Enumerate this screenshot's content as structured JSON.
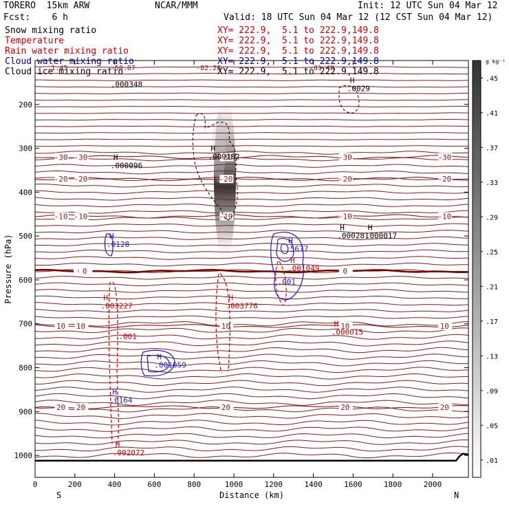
{
  "header": {
    "model": "TORERO  15km ARW",
    "org": "NCAR/MMM",
    "init": "Init: 12 UTC Sun 04 Mar 12",
    "fcst": "Fcst:    6 h",
    "valid": "Valid: 18 UTC Sun 04 Mar 12 (12 CST Sun 04 Mar 12)"
  },
  "legend": [
    {
      "name": "Snow mixing ratio",
      "color": "#000000",
      "xy": "XY= 222.9,  5.1 to 222.9,149.8"
    },
    {
      "name": "Temperature",
      "color": "#cc0000",
      "xy": "XY= 222.9,  5.1 to 222.9,149.8"
    },
    {
      "name": "Rain water mixing ratio",
      "color": "#cc0000",
      "xy": "XY= 222.9,  5.1 to 222.9,149.8"
    },
    {
      "name": "Cloud water mixing ratio",
      "color": "#0000aa",
      "xy": "XY= 222.9,  5.1 to 222.9,149.8"
    },
    {
      "name": "Cloud ice mixing ratio",
      "color": "#000000",
      "xy": "XY= 222.9,  5.1 to 222.9,149.8"
    }
  ],
  "colors": {
    "temperature": "#8b1a1a",
    "freezing_line": "#7a0000",
    "rain": "#cc0000",
    "cloud_water": "#1a1acc",
    "snow": "#000000",
    "ground": "#000000"
  },
  "chart_data": {
    "type": "heatmap",
    "title": "",
    "xlabel": "Distance (km)",
    "ylabel": "Pressure (hPa)",
    "xlim": [
      0,
      2180
    ],
    "ylim": [
      1050,
      100
    ],
    "x_ticks": [
      0,
      200,
      400,
      600,
      800,
      1000,
      1200,
      1400,
      1600,
      1800,
      2000
    ],
    "y_ticks": [
      200,
      300,
      400,
      500,
      600,
      700,
      800,
      900,
      1000
    ],
    "x_end_labels": {
      "left": "S",
      "right": "N"
    },
    "colorbar": {
      "unit": "g kg⁻¹",
      "ticks": [
        ".01",
        ".05",
        ".09",
        ".13",
        ".17",
        ".21",
        ".25",
        ".29",
        ".33",
        ".37",
        ".41",
        ".45"
      ]
    },
    "temperature_isotherms": [
      {
        "label": "-30",
        "p": 320
      },
      {
        "label": "-20",
        "p": 370
      },
      {
        "label": "-10",
        "p": 455
      },
      {
        "label": "0",
        "p": 580
      },
      {
        "label": "10",
        "p": 705
      },
      {
        "label": "20",
        "p": 890
      }
    ],
    "top_labels": [
      ".1.45",
      "-50.87",
      "-82.28",
      "-81.48"
    ],
    "annotations": [
      {
        "series": "snow",
        "text": ".000348",
        "x": 380,
        "p": 160,
        "h": false
      },
      {
        "series": "snow",
        "text": ".0029",
        "x": 1570,
        "p": 170,
        "h": true
      },
      {
        "series": "snow",
        "text": ".009182",
        "x": 870,
        "p": 325,
        "h": true
      },
      {
        "series": "snow",
        "text": ".000096",
        "x": 380,
        "p": 345,
        "h": true
      },
      {
        "series": "snow",
        "text": ".000281",
        "x": 1520,
        "p": 505,
        "h": true
      },
      {
        "series": "snow",
        "text": ".000017",
        "x": 1660,
        "p": 505,
        "h": true
      },
      {
        "series": "cloud_water",
        "text": ".0128",
        "x": 360,
        "p": 525,
        "h": true
      },
      {
        "series": "cloud_water",
        "text": ".5677",
        "x": 1260,
        "p": 535,
        "h": true
      },
      {
        "series": "rain",
        "text": ".001049",
        "x": 1270,
        "p": 580,
        "h": true
      },
      {
        "series": "cloud_water",
        "text": ".001",
        "x": 1220,
        "p": 610,
        "h": false
      },
      {
        "series": "rain",
        "text": ".003227",
        "x": 330,
        "p": 665,
        "h": true
      },
      {
        "series": "rain",
        "text": ".003776",
        "x": 960,
        "p": 665,
        "h": true
      },
      {
        "series": "rain",
        "text": ".000015",
        "x": 1490,
        "p": 725,
        "h": true
      },
      {
        "series": "rain",
        "text": ".001",
        "x": 420,
        "p": 735,
        "h": false
      },
      {
        "series": "cloud_water",
        "text": ".001059",
        "x": 600,
        "p": 800,
        "h": true
      },
      {
        "series": "cloud_water",
        "text": ".0164",
        "x": 375,
        "p": 880,
        "h": true
      },
      {
        "series": "rain",
        "text": ".002072",
        "x": 390,
        "p": 1000,
        "h": true
      }
    ]
  }
}
